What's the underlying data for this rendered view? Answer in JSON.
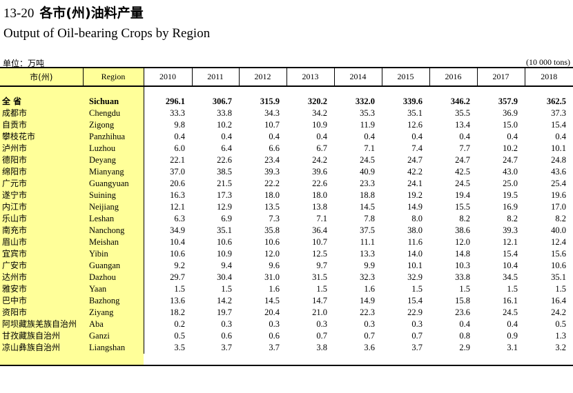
{
  "title_number": "13-20",
  "title_cn": "各市(州)油料产量",
  "title_en": "Output of Oil-bearing Crops by Region",
  "unit_cn": "单位：万吨",
  "unit_en": "(10 000 tons)",
  "header": {
    "col_cn": "市(州)",
    "col_en": "Region",
    "years": [
      "2010",
      "2011",
      "2012",
      "2013",
      "2014",
      "2015",
      "2016",
      "2017",
      "2018"
    ]
  },
  "total": {
    "cn": "全  省",
    "en": "Sichuan",
    "values": [
      "296.1",
      "306.7",
      "315.9",
      "320.2",
      "332.0",
      "339.6",
      "346.2",
      "357.9",
      "362.5"
    ]
  },
  "rows": [
    {
      "cn": "成都市",
      "en": "Chengdu",
      "values": [
        "33.3",
        "33.8",
        "34.3",
        "34.2",
        "35.3",
        "35.1",
        "35.5",
        "36.9",
        "37.3"
      ]
    },
    {
      "cn": "自贡市",
      "en": "Zigong",
      "values": [
        "9.8",
        "10.2",
        "10.7",
        "10.9",
        "11.9",
        "12.6",
        "13.4",
        "15.0",
        "15.4"
      ]
    },
    {
      "cn": "攀枝花市",
      "en": "Panzhihua",
      "values": [
        "0.4",
        "0.4",
        "0.4",
        "0.4",
        "0.4",
        "0.4",
        "0.4",
        "0.4",
        "0.4"
      ]
    },
    {
      "cn": "泸州市",
      "en": "Luzhou",
      "values": [
        "6.0",
        "6.4",
        "6.6",
        "6.7",
        "7.1",
        "7.4",
        "7.7",
        "10.2",
        "10.1"
      ]
    },
    {
      "cn": "德阳市",
      "en": "Deyang",
      "values": [
        "22.1",
        "22.6",
        "23.4",
        "24.2",
        "24.5",
        "24.7",
        "24.7",
        "24.7",
        "24.8"
      ]
    },
    {
      "cn": "绵阳市",
      "en": "Mianyang",
      "values": [
        "37.0",
        "38.5",
        "39.3",
        "39.6",
        "40.9",
        "42.2",
        "42.5",
        "43.0",
        "43.6"
      ]
    },
    {
      "cn": "广元市",
      "en": "Guangyuan",
      "values": [
        "20.6",
        "21.5",
        "22.2",
        "22.6",
        "23.3",
        "24.1",
        "24.5",
        "25.0",
        "25.4"
      ]
    },
    {
      "cn": "遂宁市",
      "en": "Suining",
      "values": [
        "16.3",
        "17.3",
        "18.0",
        "18.0",
        "18.8",
        "19.2",
        "19.4",
        "19.5",
        "19.6"
      ]
    },
    {
      "cn": "内江市",
      "en": "Neijiang",
      "values": [
        "12.1",
        "12.9",
        "13.5",
        "13.8",
        "14.5",
        "14.9",
        "15.5",
        "16.9",
        "17.0"
      ]
    },
    {
      "cn": "乐山市",
      "en": "Leshan",
      "values": [
        "6.3",
        "6.9",
        "7.3",
        "7.1",
        "7.8",
        "8.0",
        "8.2",
        "8.2",
        "8.2"
      ]
    },
    {
      "cn": "南充市",
      "en": "Nanchong",
      "values": [
        "34.9",
        "35.1",
        "35.8",
        "36.4",
        "37.5",
        "38.0",
        "38.6",
        "39.3",
        "40.0"
      ]
    },
    {
      "cn": "眉山市",
      "en": "Meishan",
      "values": [
        "10.4",
        "10.6",
        "10.6",
        "10.7",
        "11.1",
        "11.6",
        "12.0",
        "12.1",
        "12.4"
      ]
    },
    {
      "cn": "宜宾市",
      "en": "Yibin",
      "values": [
        "10.6",
        "10.9",
        "12.0",
        "12.5",
        "13.3",
        "14.0",
        "14.8",
        "15.4",
        "15.6"
      ]
    },
    {
      "cn": "广安市",
      "en": "Guangan",
      "values": [
        "9.2",
        "9.4",
        "9.6",
        "9.7",
        "9.9",
        "10.1",
        "10.3",
        "10.4",
        "10.6"
      ]
    },
    {
      "cn": "达州市",
      "en": "Dazhou",
      "values": [
        "29.7",
        "30.4",
        "31.0",
        "31.5",
        "32.3",
        "32.9",
        "33.8",
        "34.5",
        "35.1"
      ]
    },
    {
      "cn": "雅安市",
      "en": "Yaan",
      "values": [
        "1.5",
        "1.5",
        "1.6",
        "1.5",
        "1.6",
        "1.5",
        "1.5",
        "1.5",
        "1.5"
      ]
    },
    {
      "cn": "巴中市",
      "en": "Bazhong",
      "values": [
        "13.6",
        "14.2",
        "14.5",
        "14.7",
        "14.9",
        "15.4",
        "15.8",
        "16.1",
        "16.4"
      ]
    },
    {
      "cn": "资阳市",
      "en": "Ziyang",
      "values": [
        "18.2",
        "19.7",
        "20.4",
        "21.0",
        "22.3",
        "22.9",
        "23.6",
        "24.5",
        "24.2"
      ]
    },
    {
      "cn": "阿坝藏族羌族自治州",
      "en": "Aba",
      "values": [
        "0.2",
        "0.3",
        "0.3",
        "0.3",
        "0.3",
        "0.3",
        "0.4",
        "0.4",
        "0.5"
      ]
    },
    {
      "cn": "甘孜藏族自治州",
      "en": "Ganzi",
      "values": [
        "0.5",
        "0.6",
        "0.6",
        "0.7",
        "0.7",
        "0.7",
        "0.8",
        "0.9",
        "1.3"
      ]
    },
    {
      "cn": "凉山彝族自治州",
      "en": "Liangshan",
      "values": [
        "3.5",
        "3.7",
        "3.7",
        "3.8",
        "3.6",
        "3.7",
        "2.9",
        "3.1",
        "3.2"
      ]
    }
  ]
}
